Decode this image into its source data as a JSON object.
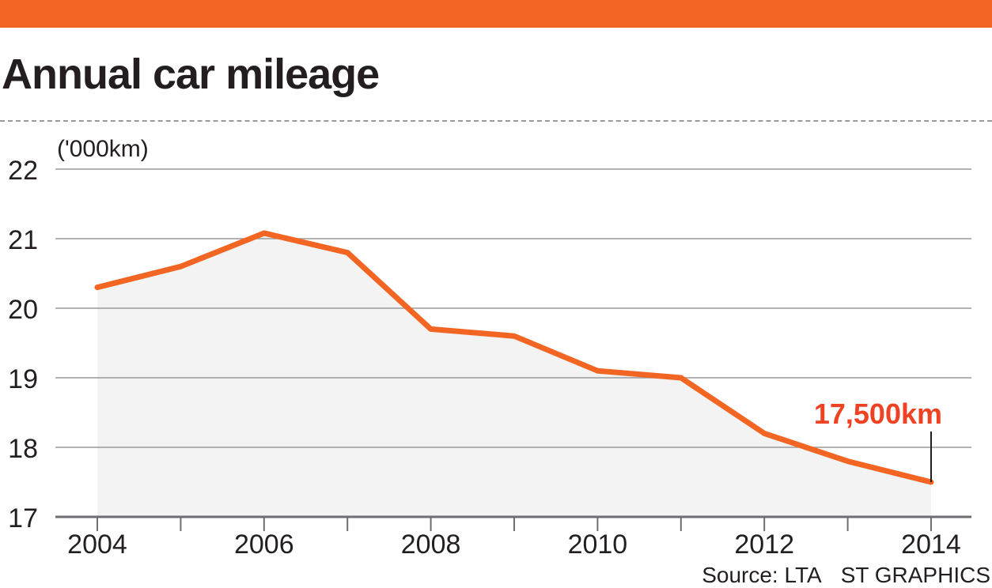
{
  "header": {
    "title": "Annual car mileage"
  },
  "colors": {
    "accent": "#f26522",
    "callout": "#ef4223",
    "area": "#f2f3f2",
    "grid": "#9a9a9a",
    "text": "#231f20"
  },
  "chart_data": {
    "type": "line",
    "title": "Annual car mileage",
    "unit_label": "('000km)",
    "xlabel": "",
    "ylabel": "",
    "x": [
      2004,
      2005,
      2006,
      2007,
      2008,
      2009,
      2010,
      2011,
      2012,
      2013,
      2014
    ],
    "series": [
      {
        "values": [
          20.3,
          20.6,
          21.08,
          20.8,
          19.7,
          19.6,
          19.1,
          19.0,
          18.2,
          17.8,
          17.5
        ]
      }
    ],
    "ylim": [
      17,
      22
    ],
    "yticks": [
      "17",
      "18",
      "19",
      "20",
      "21",
      "22"
    ],
    "xtick_labels": [
      "2004",
      "2006",
      "2008",
      "2010",
      "2012",
      "2014"
    ],
    "grid": true,
    "area_fill": true,
    "annotation": {
      "text": "17,500km",
      "x": 2014,
      "y": 17.5
    }
  },
  "footer": {
    "source": "Source: LTA",
    "credit": "ST GRAPHICS"
  }
}
